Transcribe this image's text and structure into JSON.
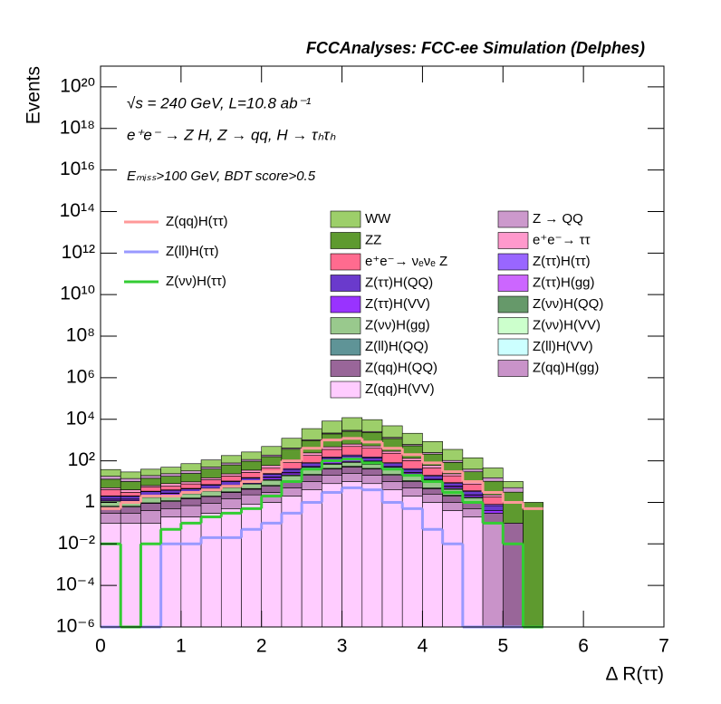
{
  "chart_data": {
    "type": "stacked_histogram",
    "title": "FCCAnalyses: FCC-ee Simulation (Delphes)",
    "annotations": [
      "√s = 240 GeV, L=10.8 ab⁻¹",
      "e⁺e⁻ → Z H, Z → qq, H → τₕτₕ",
      "Eₘᵢₛₛ>100 GeV, BDT score>0.5"
    ],
    "x_label": "Δ R(ττ)",
    "y_label": "Events",
    "log_y": true,
    "xlim": [
      0,
      7
    ],
    "xticks": [
      0,
      1,
      2,
      3,
      4,
      5,
      6,
      7
    ],
    "ylim": [
      1e-06,
      1e+21
    ],
    "yticks": [
      {
        "value": 1e-06,
        "label": "10⁻⁶"
      },
      {
        "value": 0.0001,
        "label": "10⁻⁴"
      },
      {
        "value": 0.01,
        "label": "10⁻²"
      },
      1,
      {
        "value": 100,
        "label": "10²"
      },
      {
        "value": 10000.0,
        "label": "10⁴"
      },
      {
        "value": 1000000.0,
        "label": "10⁶"
      },
      {
        "value": 100000000.0,
        "label": "10⁸"
      },
      {
        "value": 10000000000.0,
        "label": "10¹⁰"
      },
      {
        "value": 1000000000000.0,
        "label": "10¹²"
      },
      {
        "value": 100000000000000.0,
        "label": "10¹⁴"
      },
      {
        "value": 1e+16,
        "label": "10¹⁶"
      },
      {
        "value": 1e+18,
        "label": "10¹⁸"
      },
      {
        "value": 1e+20,
        "label": "10²⁰"
      }
    ],
    "bins": [
      0,
      0.25,
      0.5,
      0.75,
      1,
      1.25,
      1.5,
      1.75,
      2,
      2.25,
      2.5,
      2.75,
      3,
      3.25,
      3.5,
      3.75,
      4,
      4.25,
      4.5,
      4.75,
      5,
      5.25,
      5.5
    ],
    "series": [
      {
        "name": "WW",
        "color": "#9dcf6a",
        "values": [
          20,
          15,
          20,
          25,
          40,
          60,
          100,
          150,
          300,
          800,
          2500,
          6000,
          9000,
          7000,
          3500,
          1500,
          600,
          250,
          100,
          30,
          5,
          0
        ]
      },
      {
        "name": "Z → QQ",
        "color": "#cc99cc",
        "values": [
          5,
          4,
          5,
          6,
          8,
          10,
          15,
          20,
          30,
          50,
          100,
          200,
          300,
          250,
          150,
          80,
          40,
          20,
          10,
          5,
          2,
          0
        ]
      },
      {
        "name": "ZZ",
        "color": "#5e9a2f",
        "values": [
          8,
          6,
          8,
          10,
          15,
          25,
          40,
          60,
          100,
          250,
          700,
          1500,
          2000,
          1800,
          900,
          400,
          150,
          60,
          20,
          8,
          3,
          1
        ]
      },
      {
        "name": "e⁺e⁻→ ττ",
        "color": "#ff99cc",
        "values": [
          1,
          1,
          1,
          2,
          2,
          3,
          5,
          8,
          15,
          30,
          60,
          120,
          150,
          120,
          60,
          30,
          15,
          5,
          2,
          0.5,
          0,
          0
        ]
      },
      {
        "name": "e⁺e⁻→ νₑνₑ Z",
        "color": "#ff6b8f",
        "values": [
          2,
          1,
          2,
          2,
          3,
          5,
          8,
          12,
          20,
          40,
          100,
          200,
          300,
          250,
          150,
          60,
          25,
          10,
          4,
          1,
          0,
          0
        ]
      },
      {
        "name": "Z(ττ)H(ττ)",
        "color": "#9966ff",
        "values": [
          0.1,
          0.1,
          0.2,
          0.2,
          0.3,
          0.5,
          0.8,
          1,
          2,
          4,
          8,
          15,
          20,
          15,
          8,
          4,
          2,
          0.8,
          0.3,
          0.1,
          0,
          0
        ]
      },
      {
        "name": "Z(ττ)H(QQ)",
        "color": "#6a3acc",
        "values": [
          0.5,
          0.5,
          1,
          1,
          1,
          2,
          3,
          4,
          6,
          10,
          20,
          40,
          50,
          40,
          20,
          10,
          5,
          2,
          1,
          0.3,
          0,
          0
        ]
      },
      {
        "name": "Z(ττ)H(gg)",
        "color": "#cc66ff",
        "values": [
          0.05,
          0.05,
          0.1,
          0.1,
          0.1,
          0.2,
          0.3,
          0.5,
          1,
          2,
          3,
          5,
          6,
          5,
          3,
          2,
          1,
          0.4,
          0.1,
          0,
          0,
          0
        ]
      },
      {
        "name": "Z(ττ)H(VV)",
        "color": "#9933ff",
        "values": [
          0.2,
          0.2,
          0.3,
          0.4,
          0.5,
          0.8,
          1,
          2,
          3,
          5,
          10,
          20,
          25,
          20,
          10,
          5,
          2,
          1,
          0.4,
          0.1,
          0,
          0
        ]
      },
      {
        "name": "Z(νν)H(QQ)",
        "color": "#66996a",
        "values": [
          0.05,
          0.05,
          0.1,
          0.1,
          0.2,
          0.2,
          0.3,
          0.5,
          1,
          2,
          3,
          5,
          6,
          5,
          3,
          2,
          1,
          0.5,
          0.2,
          0,
          0,
          0
        ]
      },
      {
        "name": "Z(νν)H(gg)",
        "color": "#99c98d",
        "values": [
          0.5,
          0.5,
          0.8,
          1,
          1,
          1.5,
          2,
          3,
          5,
          8,
          15,
          25,
          30,
          25,
          15,
          8,
          4,
          2,
          0.5,
          0,
          0,
          0
        ]
      },
      {
        "name": "Z(νν)H(VV)",
        "color": "#ccffcc",
        "values": [
          0.05,
          0.05,
          0.05,
          0.1,
          0.1,
          0.1,
          0.2,
          0.3,
          0.5,
          1,
          2,
          3,
          4,
          3,
          2,
          1,
          0.5,
          0.2,
          0.1,
          0,
          0,
          0
        ]
      },
      {
        "name": "Z(ll)H(QQ)",
        "color": "#5f9497",
        "values": [
          0,
          0,
          0,
          0,
          0.01,
          0,
          0.02,
          0.03,
          0.05,
          0.1,
          0.2,
          0.3,
          0.3,
          0.2,
          0.1,
          0.05,
          0.02,
          0.01,
          0,
          0,
          0,
          0
        ]
      },
      {
        "name": "Z(ll)H(VV)",
        "color": "#ccffff",
        "values": [
          0,
          0,
          0,
          0,
          0,
          0,
          0,
          0,
          0.003,
          0.005,
          0.01,
          0.01,
          0.01,
          0.01,
          0.005,
          0.003,
          0,
          0,
          0,
          0,
          0,
          0
        ]
      },
      {
        "name": "Z(qq)H(QQ)",
        "color": "#996699",
        "values": [
          0.3,
          0.3,
          0.5,
          0.6,
          0.8,
          1,
          1.5,
          2,
          3,
          5,
          10,
          20,
          25,
          20,
          10,
          5,
          2,
          1,
          0.5,
          0.2,
          0.1,
          0
        ]
      },
      {
        "name": "Z(qq)H(gg)",
        "color": "#c993c9",
        "values": [
          0.2,
          0.2,
          0.3,
          0.3,
          0.5,
          0.6,
          1,
          1.5,
          2,
          3,
          6,
          12,
          15,
          12,
          6,
          3,
          1.5,
          0.6,
          0.3,
          0.1,
          0,
          0
        ]
      },
      {
        "name": "Z(qq)H(VV)",
        "color": "#ffccff",
        "values": [
          0.1,
          0.1,
          0.1,
          0.2,
          0.2,
          0.3,
          0.5,
          0.8,
          1,
          2,
          4,
          8,
          10,
          8,
          4,
          2,
          1,
          0.4,
          0.2,
          0,
          0,
          0
        ]
      }
    ],
    "lines": [
      {
        "name": "Z(qq)H(ττ)",
        "color": "#ff9999",
        "values": [
          0.5,
          1,
          2,
          2,
          3,
          4,
          6,
          10,
          30,
          100,
          400,
          1000,
          1200,
          800,
          400,
          200,
          80,
          30,
          10,
          3,
          1,
          0.5
        ]
      },
      {
        "name": "Z(ll)H(ττ)",
        "color": "#9999ff",
        "values": [
          0,
          0,
          0,
          0.01,
          0.01,
          0.02,
          0.02,
          0.05,
          0.1,
          0.3,
          1,
          3,
          5,
          4,
          1,
          0.5,
          0.05,
          0.01,
          0,
          0,
          0,
          0
        ]
      },
      {
        "name": "Z(νν)H(ττ)",
        "color": "#33cc33",
        "values": [
          0.01,
          0,
          0.01,
          0.05,
          0.1,
          0.2,
          0.3,
          0.5,
          2,
          10,
          40,
          100,
          120,
          80,
          40,
          20,
          10,
          3,
          1,
          0.1,
          0.01,
          0
        ]
      }
    ]
  }
}
